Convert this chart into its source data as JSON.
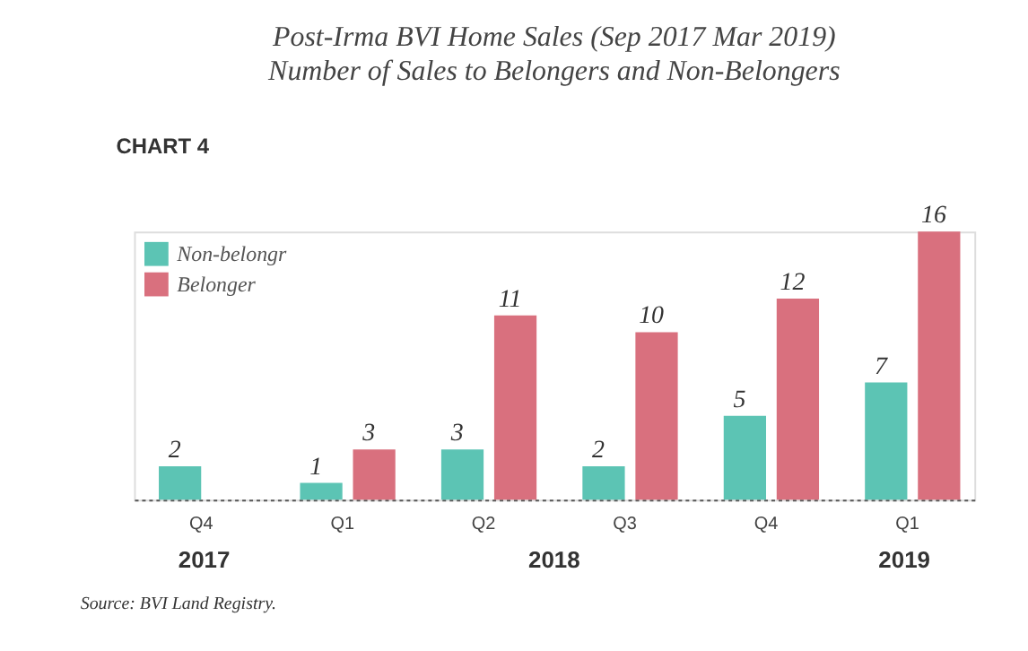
{
  "chart_data": {
    "type": "bar",
    "title": "Post-Irma BVI Home Sales (Sep 2017 Mar 2019)",
    "subtitle": "Number of Sales to Belongers and Non-Belongers",
    "categories": [
      "Q4",
      "Q1",
      "Q2",
      "Q3",
      "Q4",
      "Q1"
    ],
    "series": [
      {
        "name": "Non-belongr",
        "color": "#5cc4b4",
        "values": [
          2,
          1,
          3,
          2,
          5,
          7
        ]
      },
      {
        "name": "Belonger",
        "color": "#d9707e",
        "values": [
          null,
          3,
          11,
          10,
          12,
          16
        ]
      }
    ],
    "data_labels": true,
    "legend": "top left",
    "grid": false,
    "tick_labels": "x",
    "annotations": [
      "CHART 4",
      "2017",
      "2018",
      "2019",
      "Source: BVI Land Registry."
    ]
  }
}
